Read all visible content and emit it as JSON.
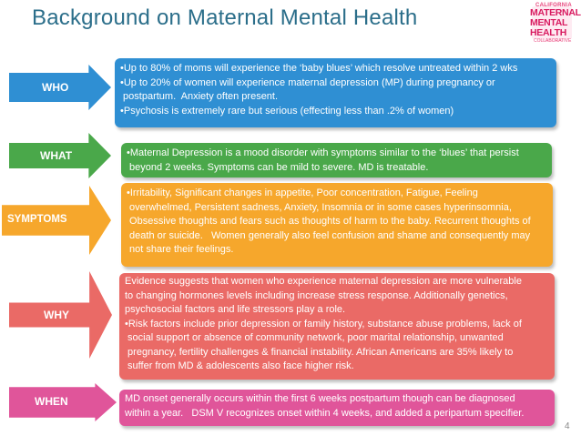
{
  "title": "Background on Maternal Mental Health",
  "logo": {
    "line1": "CALIFORNIA",
    "line2": "MATERNAL",
    "line3": "MENTAL",
    "line4": "HEALTH",
    "line5": "COLLABORATIVE"
  },
  "page_number": "4",
  "colors": {
    "title": "#2b6e8a",
    "who": "#2f8fd3",
    "what": "#4aa84a",
    "symptoms": "#f6a72c",
    "why": "#ea6a66",
    "when": "#e0559a"
  },
  "rows": {
    "who": {
      "label": "WHO",
      "lines": [
        "•Up to 80% of moms will experience the ‘baby blues’ which resolve untreated within 2 wks",
        "•Up to 20% of women will experience maternal depression (MP) during pregnancy or",
        " postpartum.  Anxiety often present.",
        "•Psychosis is extremely rare but serious (effecting less than .2% of women)"
      ]
    },
    "what": {
      "label": "WHAT",
      "lines": [
        "•Maternal Depression is a mood disorder with symptoms similar to the ‘blues’ that persist",
        " beyond 2 weeks. Symptoms can be mild to severe. MD is treatable."
      ]
    },
    "symptoms": {
      "label": "SYMPTOMS",
      "lines": [
        "•Irritability, Significant changes in appetite, Poor concentration, Fatigue, Feeling",
        " overwhelmed, Persistent sadness, Anxiety, Insomnia or in some cases hyperinsomnia,",
        " Obsessive thoughts and fears such as thoughts of harm to the baby. Recurrent thoughts of",
        " death or suicide.   Women generally also feel confusion and shame and consequently may",
        " not share their feelings."
      ]
    },
    "why": {
      "label": "WHY",
      "lines": [
        "Evidence suggests that women who experience maternal depression are more vulnerable",
        "to changing hormones levels including increase stress response. Additionally genetics,",
        "psychosocial factors and life stressors play a role.",
        "•Risk factors include prior depression or family history, substance abuse problems, lack of",
        " social support or absence of community network, poor marital relationship, unwanted",
        " pregnancy, fertility challenges & financial instability. African Americans are 35% likely to",
        " suffer from MD & adolescents also face higher risk."
      ]
    },
    "when": {
      "label": "WHEN",
      "lines": [
        "MD onset generally occurs within the first 6 weeks postpartum though can be diagnosed",
        "within a year.   DSM V recognizes onset within 4 weeks, and added a peripartum specifier."
      ]
    }
  }
}
